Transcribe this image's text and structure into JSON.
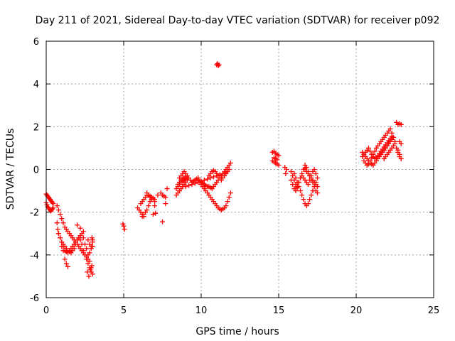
{
  "chart_data": {
    "type": "scatter",
    "title": "Day 211 of 2021, Sidereal Day-to-day VTEC variation (SDTVAR) for receiver p092",
    "xlabel": "GPS time / hours",
    "ylabel": "SDTVAR / TECUs",
    "xlim": [
      0,
      25
    ],
    "ylim": [
      -6,
      6
    ],
    "xticks": [
      0,
      5,
      10,
      15,
      20,
      25
    ],
    "yticks": [
      -6,
      -4,
      -2,
      0,
      2,
      4,
      6
    ],
    "xtick_labels": [
      "0",
      "5",
      "10",
      "15",
      "20",
      "25"
    ],
    "ytick_labels": [
      "-6",
      "-4",
      "-2",
      "0",
      "2",
      "4",
      "6"
    ],
    "grid": true,
    "marker": "+",
    "color": "#ff0000",
    "series": [
      {
        "name": "SDTVAR",
        "x": [
          0.0,
          0.05,
          0.1,
          0.15,
          0.2,
          0.25,
          0.3,
          0.35,
          0.4,
          0.45,
          0.0,
          0.05,
          0.1,
          0.15,
          0.2,
          0.25,
          0.3,
          0.35,
          0.4,
          0.45,
          0.7,
          0.8,
          0.9,
          1.0,
          1.1,
          1.2,
          1.3,
          1.4,
          1.5,
          1.6,
          1.7,
          1.8,
          1.9,
          2.0,
          2.1,
          2.2,
          2.3,
          2.4,
          2.5,
          2.6,
          2.7,
          2.8,
          2.9,
          0.7,
          0.75,
          0.8,
          0.9,
          1.0,
          1.1,
          1.2,
          1.3,
          1.4,
          1.5,
          1.6,
          1.7,
          1.8,
          1.9,
          2.0,
          2.1,
          2.2,
          2.3,
          2.4,
          2.5,
          2.6,
          2.7,
          2.8,
          2.9,
          3.0,
          0.8,
          0.9,
          1.0,
          1.1,
          1.2,
          1.3,
          1.4,
          1.5,
          1.6,
          1.7,
          1.8,
          1.9,
          2.0,
          2.1,
          2.2,
          2.3,
          2.4,
          2.5,
          2.6,
          2.7,
          2.8,
          2.9,
          3.0,
          1.2,
          1.3,
          1.4,
          1.0,
          1.1,
          2.7,
          2.8,
          2.9,
          3.0,
          2.75,
          2.85,
          2.95,
          2.65,
          2.95,
          3.0,
          2.4,
          2.2,
          2.0,
          4.95,
          5.0,
          5.05,
          5.9,
          6.0,
          6.1,
          6.2,
          6.3,
          6.1,
          6.2,
          6.3,
          6.4,
          6.5,
          6.6,
          6.7,
          6.8,
          6.9,
          7.0,
          6.2,
          6.3,
          6.4,
          6.5,
          6.6,
          6.7,
          6.8,
          6.5,
          6.6,
          6.7,
          6.8,
          7.0,
          7.2,
          7.4,
          7.5,
          7.6,
          7.7,
          7.8,
          6.9,
          7.05,
          7.0,
          7.5,
          7.7,
          8.4,
          8.5,
          8.6,
          8.7,
          8.8,
          8.9,
          9.0,
          9.1,
          8.4,
          8.5,
          8.6,
          8.7,
          8.8,
          8.9,
          9.0,
          9.1,
          8.5,
          8.6,
          8.7,
          8.8,
          8.9,
          9.0,
          8.6,
          8.7,
          8.8,
          8.9,
          9.0,
          9.1,
          9.2,
          9.3,
          9.4,
          9.5,
          9.6,
          9.7,
          9.8,
          9.0,
          9.2,
          9.4,
          9.6,
          9.8,
          10.0,
          10.2,
          10.4,
          10.6,
          10.8,
          11.0,
          11.2,
          11.4,
          11.6,
          9.8,
          9.9,
          10.0,
          10.1,
          10.2,
          10.3,
          10.4,
          10.5,
          10.6,
          10.7,
          10.8,
          10.9,
          11.0,
          11.1,
          11.2,
          11.3,
          11.4,
          11.5,
          11.6,
          11.7,
          11.8,
          11.9,
          10.0,
          10.1,
          10.2,
          10.3,
          10.4,
          10.5,
          10.6,
          10.7,
          10.8,
          10.9,
          11.0,
          11.1,
          11.2,
          11.3,
          11.4,
          11.5,
          11.6,
          11.7,
          11.8,
          11.9,
          10.5,
          10.6,
          10.7,
          10.8,
          10.9,
          11.0,
          11.1,
          11.2,
          11.3,
          11.4,
          11.5,
          11.6,
          11.7,
          11.8,
          11.0,
          11.05,
          11.1,
          11.15,
          14.6,
          14.7,
          14.8,
          14.9,
          15.0,
          14.6,
          14.7,
          14.8,
          14.9,
          15.0,
          14.7,
          14.8,
          14.9,
          15.4,
          15.5,
          15.45,
          15.8,
          15.9,
          16.0,
          16.1,
          16.2,
          16.3,
          16.4,
          16.5,
          16.6,
          16.7,
          16.8,
          16.9,
          17.0,
          17.1,
          17.2,
          17.3,
          17.4,
          17.5,
          15.8,
          15.9,
          16.0,
          16.1,
          16.2,
          16.3,
          16.4,
          16.5,
          16.6,
          16.7,
          16.8,
          16.9,
          17.0,
          17.1,
          17.2,
          17.3,
          17.4,
          17.5,
          16.0,
          16.1,
          16.2,
          16.3,
          16.4,
          16.5,
          16.6,
          16.7,
          16.8,
          16.9,
          17.0,
          17.1,
          17.2,
          17.3,
          17.4,
          16.7,
          16.8,
          16.9,
          17.0,
          17.1,
          17.2,
          17.3,
          17.4,
          17.5,
          20.4,
          20.5,
          20.6,
          20.7,
          20.8,
          20.9,
          21.0,
          21.1,
          21.2,
          21.3,
          21.4,
          21.5,
          21.6,
          21.7,
          21.8,
          21.9,
          22.0,
          22.1,
          22.2,
          22.3,
          22.4,
          20.5,
          20.6,
          20.7,
          20.8,
          20.9,
          21.0,
          21.1,
          21.2,
          21.3,
          21.4,
          21.5,
          21.6,
          21.7,
          21.8,
          21.9,
          22.0,
          22.1,
          22.2,
          22.3,
          22.4,
          22.5,
          20.4,
          20.5,
          20.6,
          20.7,
          20.8,
          20.9,
          21.0,
          21.1,
          21.2,
          21.3,
          21.4,
          21.5,
          21.6,
          21.7,
          21.8,
          21.9,
          22.0,
          22.1,
          22.2,
          22.3,
          21.8,
          21.9,
          22.0,
          22.1,
          22.2,
          22.3,
          22.4,
          22.5,
          22.6,
          22.7,
          22.8,
          22.9,
          22.8,
          22.9,
          22.7,
          22.8,
          22.6,
          22.7,
          22.8,
          22.9
        ],
        "y": [
          -1.15,
          -1.2,
          -1.25,
          -1.3,
          -1.35,
          -1.4,
          -1.45,
          -1.5,
          -1.55,
          -1.6,
          -1.55,
          -1.65,
          -1.75,
          -1.8,
          -1.85,
          -1.9,
          -1.95,
          -1.9,
          -1.85,
          -1.8,
          -1.7,
          -1.9,
          -2.1,
          -2.3,
          -2.5,
          -2.7,
          -2.8,
          -2.9,
          -3.0,
          -3.1,
          -3.2,
          -3.3,
          -3.4,
          -3.5,
          -3.6,
          -3.7,
          -3.8,
          -3.9,
          -4.0,
          -4.2,
          -4.4,
          -4.6,
          -4.8,
          -2.5,
          -2.8,
          -3.0,
          -3.2,
          -3.4,
          -3.5,
          -3.6,
          -3.7,
          -3.8,
          -3.85,
          -3.9,
          -3.8,
          -3.7,
          -3.5,
          -3.3,
          -3.2,
          -3.3,
          -3.5,
          -3.8,
          -4.0,
          -4.1,
          -4.2,
          -3.9,
          -3.6,
          -3.3,
          -3.0,
          -3.2,
          -3.4,
          -3.6,
          -3.8,
          -3.85,
          -3.9,
          -3.8,
          -3.7,
          -3.6,
          -3.5,
          -3.4,
          -3.3,
          -3.2,
          -3.1,
          -3.0,
          -3.2,
          -3.5,
          -3.7,
          -4.0,
          -4.3,
          -4.6,
          -4.9,
          -4.2,
          -4.4,
          -4.55,
          -3.6,
          -3.8,
          -3.3,
          -3.5,
          -3.7,
          -3.4,
          -5.0,
          -4.7,
          -4.5,
          -4.8,
          -3.2,
          -3.6,
          -2.9,
          -2.75,
          -2.6,
          -2.55,
          -2.65,
          -2.8,
          -1.8,
          -1.9,
          -2.0,
          -2.1,
          -2.2,
          -1.6,
          -1.5,
          -1.4,
          -1.3,
          -1.2,
          -1.2,
          -1.25,
          -1.3,
          -1.35,
          -1.4,
          -2.2,
          -2.1,
          -2.0,
          -1.9,
          -1.7,
          -1.5,
          -1.4,
          -1.1,
          -1.2,
          -1.3,
          -1.4,
          -1.5,
          -1.2,
          -1.1,
          -1.2,
          -1.25,
          -1.3,
          -0.9,
          -2.1,
          -2.05,
          -1.7,
          -2.45,
          -1.6,
          -1.2,
          -1.1,
          -1.0,
          -0.9,
          -0.8,
          -0.7,
          -0.6,
          -0.5,
          -0.9,
          -0.8,
          -0.7,
          -0.6,
          -0.55,
          -0.5,
          -0.45,
          -0.4,
          -0.7,
          -0.6,
          -0.5,
          -0.45,
          -0.4,
          -0.35,
          -0.4,
          -0.3,
          -0.2,
          -0.1,
          -0.2,
          -0.3,
          -0.4,
          -0.5,
          -0.6,
          -0.55,
          -0.5,
          -0.45,
          -0.4,
          -0.8,
          -0.75,
          -0.7,
          -0.65,
          -0.6,
          -0.55,
          -0.5,
          -0.45,
          -0.4,
          -0.35,
          -0.3,
          -0.25,
          -0.2,
          -0.15,
          -0.5,
          -0.55,
          -0.6,
          -0.65,
          -0.7,
          -0.75,
          -0.8,
          -0.8,
          -0.85,
          -0.9,
          -0.8,
          -0.7,
          -0.6,
          -0.5,
          -0.4,
          -0.3,
          -0.2,
          -0.1,
          0.0,
          0.1,
          0.2,
          0.3,
          -0.7,
          -0.8,
          -0.9,
          -1.0,
          -1.1,
          -1.2,
          -1.3,
          -1.4,
          -1.5,
          -1.6,
          -1.7,
          -1.8,
          -1.85,
          -1.9,
          -1.85,
          -1.8,
          -1.7,
          -1.5,
          -1.3,
          -1.1,
          -0.3,
          -0.2,
          -0.1,
          -0.05,
          -0.1,
          -0.2,
          -0.3,
          -0.4,
          -0.5,
          -0.4,
          -0.3,
          -0.2,
          -0.1,
          0.0,
          4.9,
          4.95,
          4.85,
          4.9,
          0.8,
          0.85,
          0.75,
          0.7,
          0.65,
          0.4,
          0.35,
          0.3,
          0.25,
          0.2,
          0.55,
          0.5,
          0.45,
          0.1,
          0.0,
          -0.2,
          -0.1,
          -0.3,
          -0.5,
          -0.7,
          -0.85,
          -0.6,
          -0.4,
          -0.3,
          -0.4,
          -0.5,
          -0.6,
          -0.7,
          -0.5,
          -0.3,
          -0.1,
          0.0,
          -0.2,
          -0.4,
          -0.5,
          -0.7,
          -0.9,
          -1.0,
          -0.8,
          -0.6,
          -0.4,
          -0.2,
          0.0,
          0.05,
          -0.1,
          -0.2,
          -0.3,
          -0.4,
          -0.5,
          -0.6,
          -0.7,
          -0.8,
          -0.2,
          -0.4,
          -0.6,
          -0.8,
          -1.0,
          -1.2,
          -1.4,
          -1.6,
          -1.7,
          -1.6,
          -1.4,
          -1.2,
          -1.0,
          -0.8,
          -0.6,
          0.2,
          0.1,
          -0.1,
          -0.3,
          -0.5,
          -0.6,
          -0.8,
          -1.0,
          -1.1,
          0.8,
          0.7,
          0.6,
          0.5,
          0.4,
          0.3,
          0.25,
          0.2,
          0.3,
          0.4,
          0.5,
          0.6,
          0.7,
          0.8,
          0.9,
          1.0,
          1.1,
          1.2,
          1.3,
          1.4,
          1.5,
          0.4,
          0.3,
          0.2,
          0.25,
          0.4,
          0.55,
          0.7,
          0.85,
          1.0,
          1.1,
          1.2,
          1.3,
          1.4,
          1.5,
          1.6,
          1.7,
          1.8,
          1.9,
          1.7,
          1.5,
          1.3,
          0.6,
          0.7,
          0.8,
          0.9,
          1.0,
          0.85,
          0.7,
          0.6,
          0.5,
          0.55,
          0.65,
          0.75,
          0.85,
          0.95,
          1.05,
          1.15,
          1.25,
          1.35,
          1.45,
          1.55,
          0.5,
          0.6,
          0.7,
          0.8,
          0.9,
          1.0,
          1.1,
          1.2,
          1.0,
          0.8,
          0.6,
          0.5,
          1.3,
          1.2,
          0.9,
          0.7,
          2.2,
          2.1,
          2.15,
          2.1
        ]
      }
    ]
  }
}
